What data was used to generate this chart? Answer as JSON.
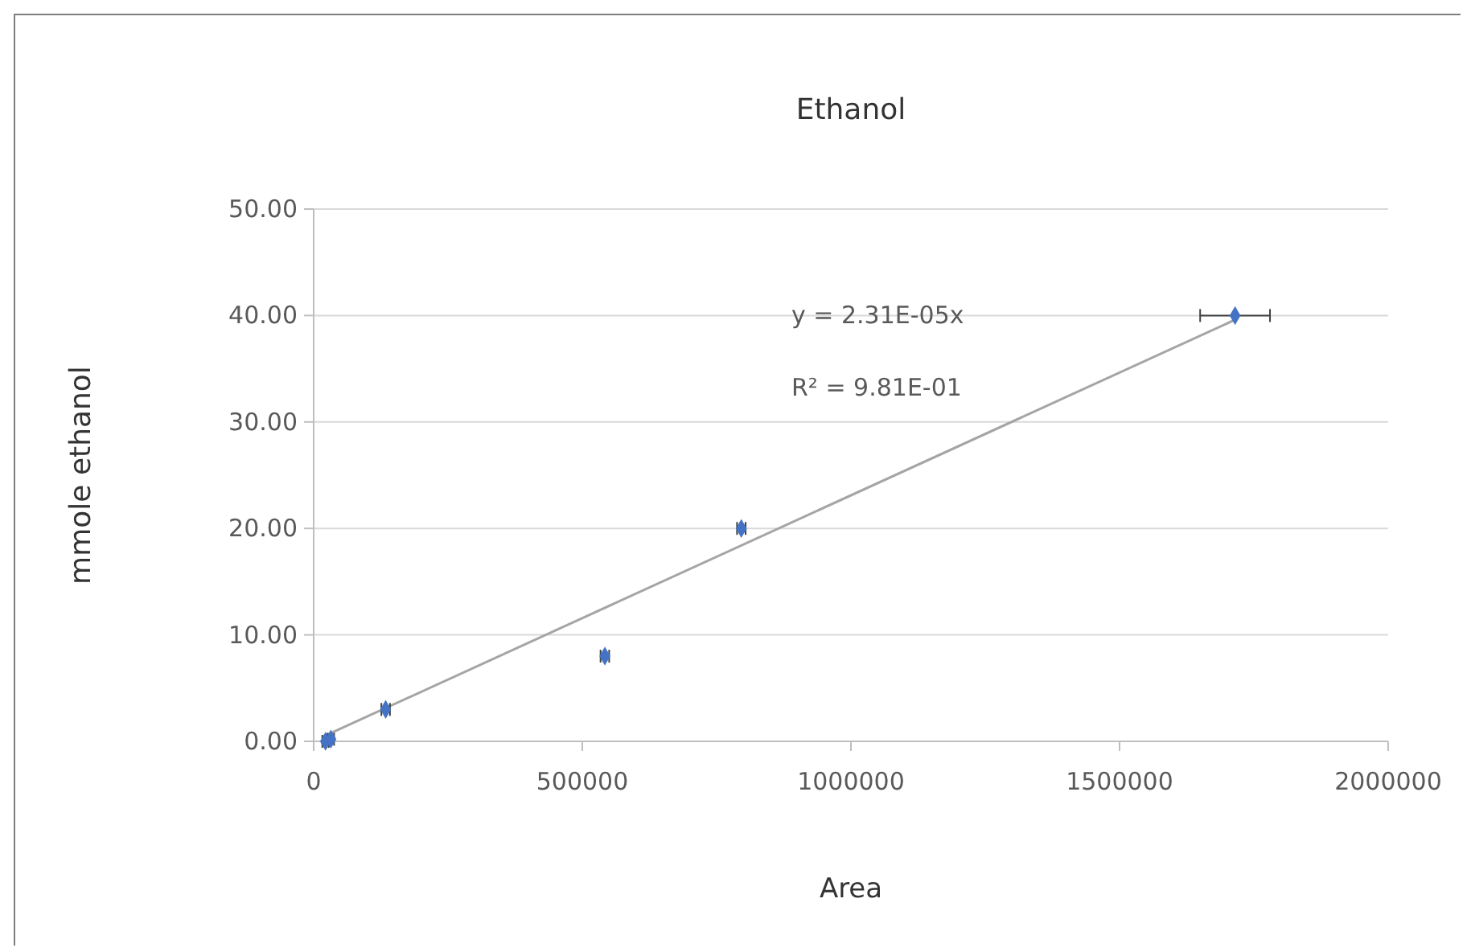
{
  "chart_data": {
    "type": "scatter",
    "title": "Ethanol",
    "xlabel": "Area",
    "ylabel": "mmole ethanol",
    "xlim": [
      0,
      2000000
    ],
    "xticks": [
      0,
      500000,
      1000000,
      1500000,
      2000000
    ],
    "ylim": [
      0,
      50
    ],
    "yticks": [
      {
        "value": 0,
        "label": "0.00"
      },
      {
        "value": 10,
        "label": "10.00"
      },
      {
        "value": 20,
        "label": "20.00"
      },
      {
        "value": 30,
        "label": "30.00"
      },
      {
        "value": 40,
        "label": "40.00"
      },
      {
        "value": 50,
        "label": "50.00"
      }
    ],
    "grid": "y",
    "annotations": [
      "y = 2.31E-05x",
      "R² = 9.81E-01"
    ],
    "series": [
      {
        "marker": "diamond",
        "color": "#4472c4",
        "x": [
          22000,
          32000,
          134000,
          542000,
          796000,
          1715000
        ],
        "values": [
          0,
          0.2,
          3,
          8,
          20,
          40
        ],
        "xerrors": [
          6000,
          6000,
          8000,
          8000,
          8000,
          65000
        ]
      },
      {
        "type": "line",
        "color": "#a5a5a5",
        "x": [
          20000,
          1715000
        ],
        "values": [
          0.5,
          39.6
        ]
      }
    ]
  }
}
